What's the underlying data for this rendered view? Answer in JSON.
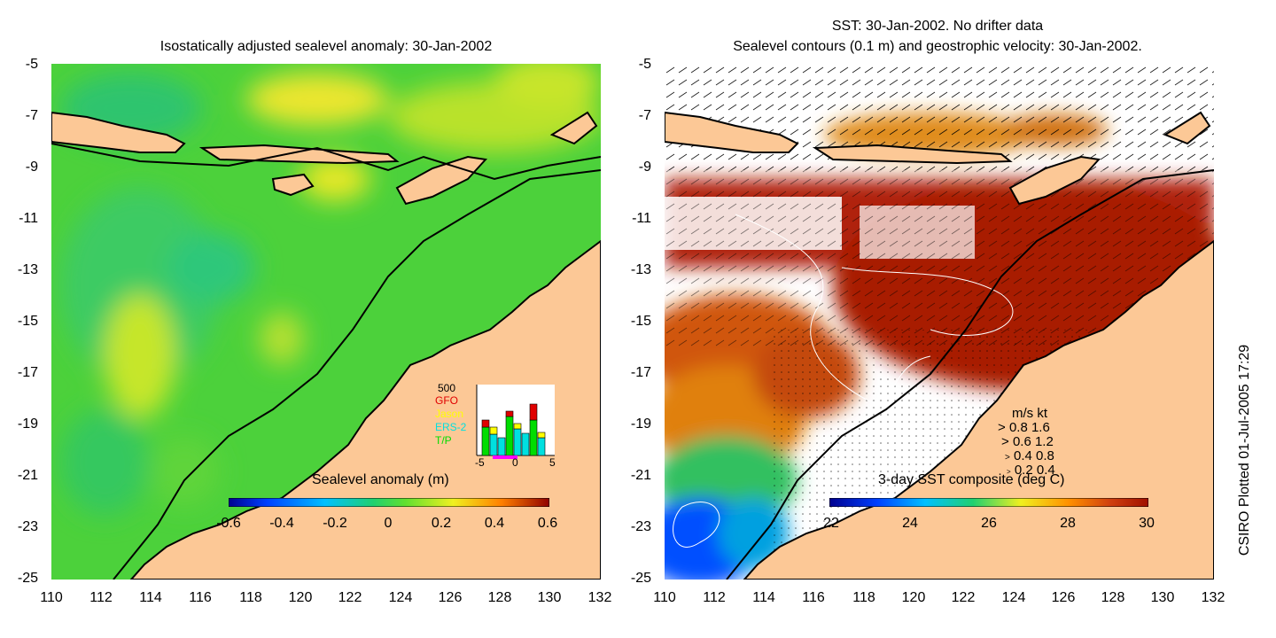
{
  "left_panel": {
    "title": "Isostatically adjusted sealevel anomaly: 30-Jan-2002",
    "colorbar_title": "Sealevel anomaly (m)",
    "colorbar_labels": [
      "-0.6",
      "-0.4",
      "-0.2",
      "0",
      "0.2",
      "0.4",
      "0.6"
    ],
    "colors": {
      "background": "#4cd13b",
      "land": "#fcc896"
    }
  },
  "right_panel": {
    "title_line1": "SST: 30-Jan-2002. No drifter data",
    "title_line2": "Sealevel contours (0.1 m) and geostrophic velocity: 30-Jan-2002.",
    "colorbar_title": "3-day SST composite (deg C)",
    "colorbar_labels": [
      "22",
      "24",
      "26",
      "28",
      "30"
    ],
    "colors": {
      "sst_hot": "#a81a05",
      "land": "#fcc896"
    }
  },
  "y_ticks": [
    "-5",
    "-7",
    "-9",
    "-11",
    "-13",
    "-15",
    "-17",
    "-19",
    "-21",
    "-23",
    "-25"
  ],
  "x_ticks": [
    "110",
    "112",
    "114",
    "116",
    "118",
    "120",
    "122",
    "124",
    "126",
    "128",
    "130",
    "132"
  ],
  "inset_histogram": {
    "ymax_label": "500",
    "legend": [
      {
        "name": "GFO",
        "color": "#e00000"
      },
      {
        "name": "Jason",
        "color": "#ffff00"
      },
      {
        "name": "ERS-2",
        "color": "#00e0e0"
      },
      {
        "name": "T/P",
        "color": "#00dd00"
      }
    ],
    "xticks": [
      "-5",
      "0",
      "5"
    ]
  },
  "velocity_legend": {
    "header": "m/s  kt",
    "rows": [
      "0.8  1.6",
      "0.6  1.2",
      "0.4  0.8",
      "0.2  0.4"
    ]
  },
  "side_label": "CSIRO Plotted 01-Jul-2005 17:29"
}
